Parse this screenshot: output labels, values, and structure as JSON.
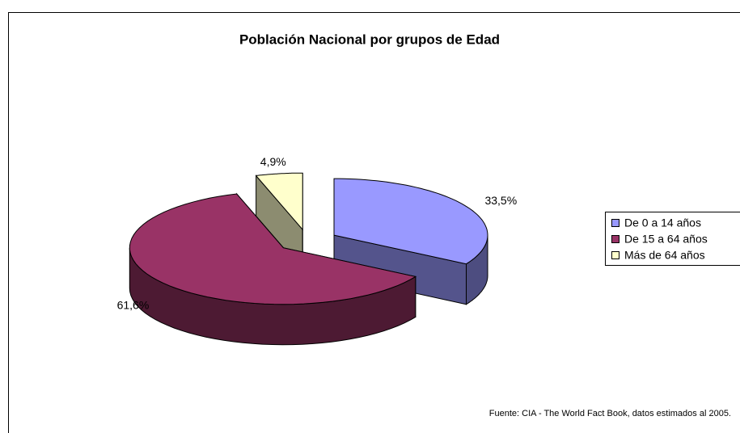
{
  "chart_data": {
    "type": "pie",
    "title": "Población Nacional por grupos de Edad",
    "categories": [
      "De 0 a 14 años",
      "De 15 a 64 años",
      "Más de 64 años"
    ],
    "values": [
      33.5,
      61.6,
      4.9
    ],
    "value_labels": [
      "33,5%",
      "61,6%",
      "4,9%"
    ],
    "colors": [
      "#9999ff",
      "#993366",
      "#ffffcc"
    ],
    "legend": "right",
    "note": "Fuente: CIA - The World Fact Book, datos estimados al 2005."
  }
}
